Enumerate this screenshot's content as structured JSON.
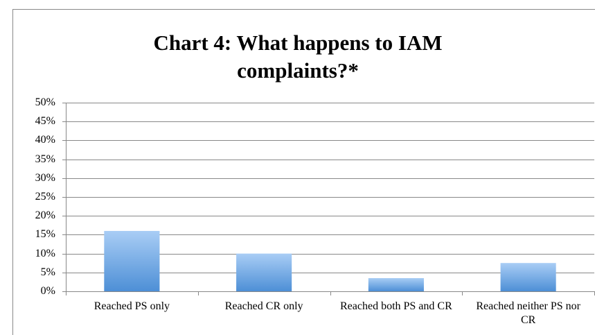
{
  "chart_data": {
    "type": "bar",
    "title": "Chart 4: What happens to IAM complaints?*",
    "categories": [
      "Reached PS only",
      "Reached CR only",
      "Reached both PS and CR",
      "Reached neither PS nor CR"
    ],
    "values": [
      16,
      10,
      3.5,
      7.5
    ],
    "color": "#5b9bd5",
    "ylim": [
      0,
      50
    ],
    "yticks": [
      {
        "value": 0,
        "label": "0%"
      },
      {
        "value": 5,
        "label": "5%"
      },
      {
        "value": 10,
        "label": "10%"
      },
      {
        "value": 15,
        "label": "15%"
      },
      {
        "value": 20,
        "label": "20%"
      },
      {
        "value": 25,
        "label": "25%"
      },
      {
        "value": 30,
        "label": "30%"
      },
      {
        "value": 35,
        "label": "35%"
      },
      {
        "value": 40,
        "label": "40%"
      },
      {
        "value": 45,
        "label": "45%"
      },
      {
        "value": 50,
        "label": "50%"
      }
    ],
    "grid": true
  }
}
